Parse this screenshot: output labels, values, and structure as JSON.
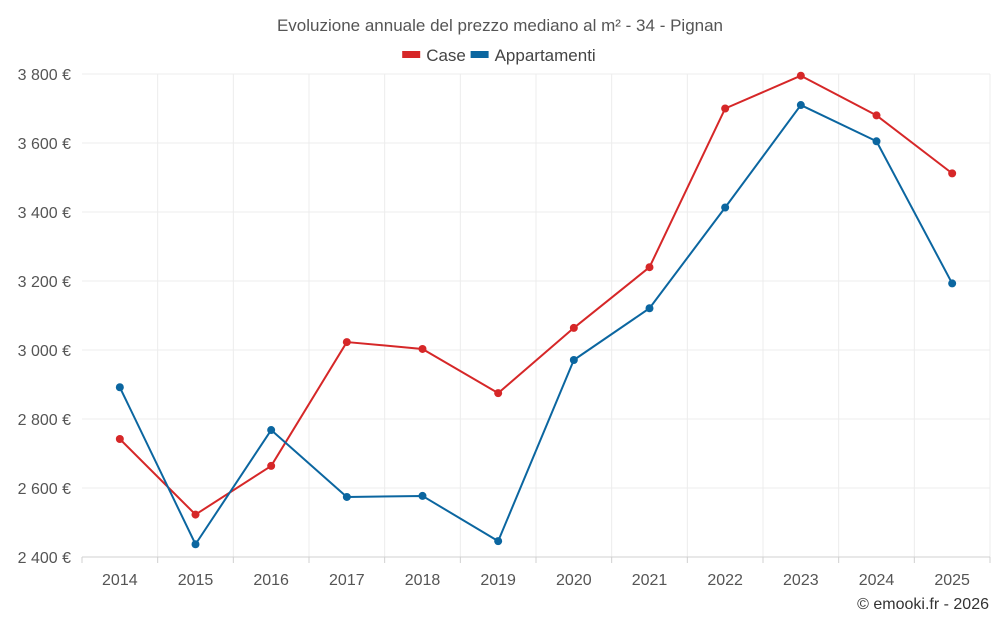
{
  "chart_data": {
    "type": "line",
    "title": "Evoluzione annuale del prezzo mediano al m² - 34 - Pignan",
    "x": [
      "2014",
      "2015",
      "2016",
      "2017",
      "2018",
      "2019",
      "2020",
      "2021",
      "2022",
      "2023",
      "2024",
      "2025"
    ],
    "series": [
      {
        "name": "Case",
        "color": "#d62728",
        "values": [
          2742,
          2523,
          2664,
          3023,
          3003,
          2875,
          3064,
          3240,
          3700,
          3795,
          3680,
          3512
        ]
      },
      {
        "name": "Appartamenti",
        "color": "#0b66a0",
        "values": [
          2892,
          2437,
          2768,
          2574,
          2577,
          2446,
          2971,
          3121,
          3413,
          3710,
          3605,
          3193
        ]
      }
    ],
    "ylim": [
      2400,
      3800
    ],
    "yticks": [
      2400,
      2600,
      2800,
      3000,
      3200,
      3400,
      3600,
      3800
    ],
    "ytick_labels": [
      "2 400 €",
      "2 600 €",
      "2 800 €",
      "3 000 €",
      "3 200 €",
      "3 400 €",
      "3 600 €",
      "3 800 €"
    ],
    "xlabel": "",
    "ylabel": "",
    "grid": true,
    "legend_position": "top-center"
  },
  "credit": "© emooki.fr - 2026"
}
